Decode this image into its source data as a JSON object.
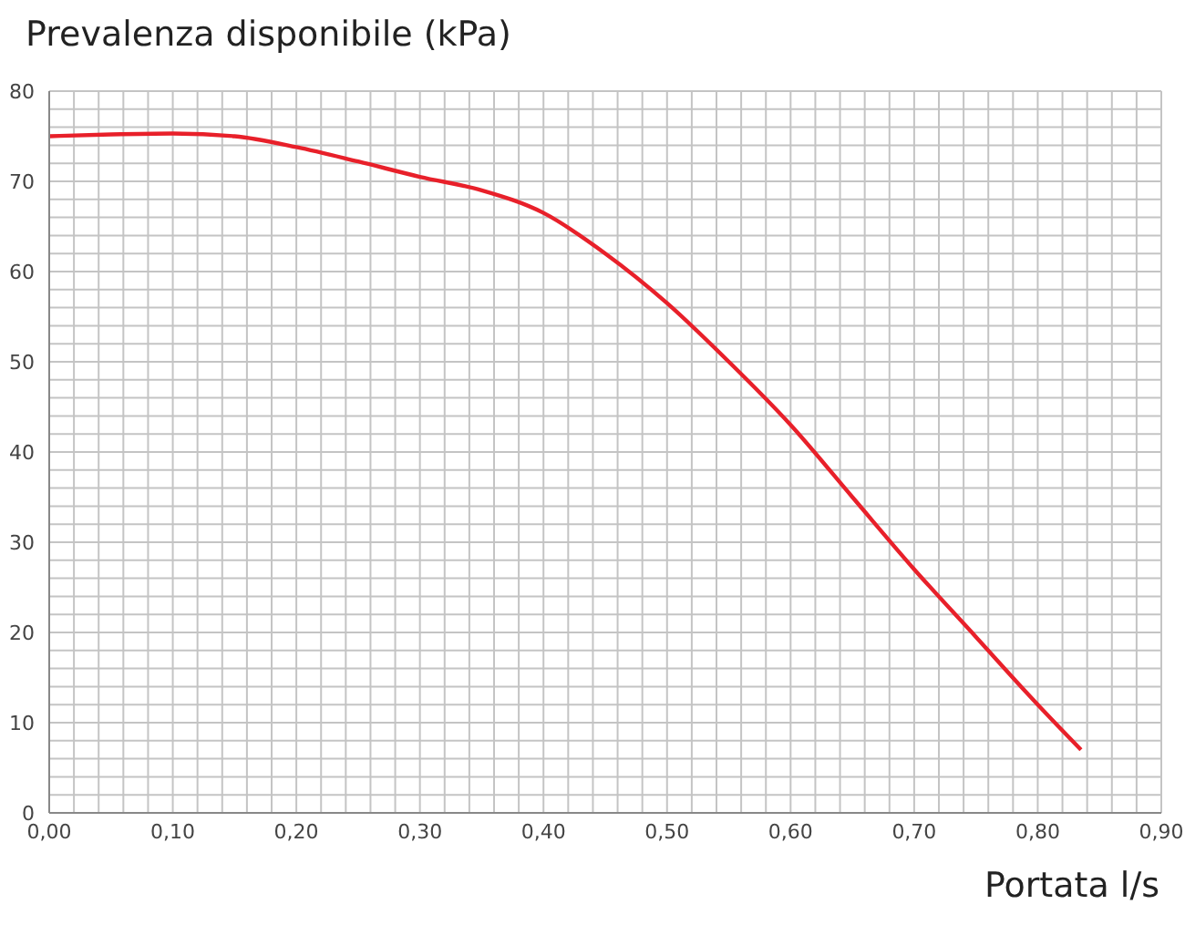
{
  "chart_data": {
    "type": "line",
    "xlabel": "Portata l/s",
    "ylabel": "Prevalenza disponibile (kPa)",
    "x": [
      0,
      0.05,
      0.1,
      0.15,
      0.2,
      0.25,
      0.3,
      0.35,
      0.4,
      0.45,
      0.5,
      0.55,
      0.6,
      0.65,
      0.7,
      0.75,
      0.8,
      0.835
    ],
    "series": [
      {
        "color": "#e8202a",
        "values": [
          75,
          75.2,
          75.3,
          75,
          73.8,
          72.2,
          70.5,
          69,
          66.5,
          62,
          56.5,
          50,
          43,
          35,
          27,
          19.5,
          12,
          7
        ]
      }
    ],
    "xlim": [
      0,
      0.9
    ],
    "xticks": [
      {
        "value": 0,
        "label": "0,00"
      },
      {
        "value": 0.02,
        "label": null
      },
      {
        "value": 0.04,
        "label": null
      },
      {
        "value": 0.06,
        "label": null
      },
      {
        "value": 0.08,
        "label": null
      },
      {
        "value": 0.1,
        "label": "0,10"
      },
      {
        "value": 0.12,
        "label": null
      },
      {
        "value": 0.14,
        "label": null
      },
      {
        "value": 0.16,
        "label": null
      },
      {
        "value": 0.18,
        "label": null
      },
      {
        "value": 0.2,
        "label": "0,20"
      },
      {
        "value": 0.22,
        "label": null
      },
      {
        "value": 0.24,
        "label": null
      },
      {
        "value": 0.26,
        "label": null
      },
      {
        "value": 0.28,
        "label": null
      },
      {
        "value": 0.3,
        "label": "0,30"
      },
      {
        "value": 0.32,
        "label": null
      },
      {
        "value": 0.34,
        "label": null
      },
      {
        "value": 0.36,
        "label": null
      },
      {
        "value": 0.38,
        "label": null
      },
      {
        "value": 0.4,
        "label": "0,40"
      },
      {
        "value": 0.42,
        "label": null
      },
      {
        "value": 0.44,
        "label": null
      },
      {
        "value": 0.46,
        "label": null
      },
      {
        "value": 0.48,
        "label": null
      },
      {
        "value": 0.5,
        "label": "0,50"
      },
      {
        "value": 0.52,
        "label": null
      },
      {
        "value": 0.54,
        "label": null
      },
      {
        "value": 0.56,
        "label": null
      },
      {
        "value": 0.58,
        "label": null
      },
      {
        "value": 0.6,
        "label": "0,60"
      },
      {
        "value": 0.62,
        "label": null
      },
      {
        "value": 0.64,
        "label": null
      },
      {
        "value": 0.66,
        "label": null
      },
      {
        "value": 0.68,
        "label": null
      },
      {
        "value": 0.7,
        "label": "0,70"
      },
      {
        "value": 0.72,
        "label": null
      },
      {
        "value": 0.74,
        "label": null
      },
      {
        "value": 0.76,
        "label": null
      },
      {
        "value": 0.78,
        "label": null
      },
      {
        "value": 0.8,
        "label": "0,80"
      },
      {
        "value": 0.82,
        "label": null
      },
      {
        "value": 0.84,
        "label": null
      },
      {
        "value": 0.86,
        "label": null
      },
      {
        "value": 0.88,
        "label": null
      },
      {
        "value": 0.9,
        "label": "0,90"
      }
    ],
    "ylim": [
      0,
      80
    ],
    "yticks": [
      0,
      {
        "value": 2,
        "label": null
      },
      {
        "value": 4,
        "label": null
      },
      {
        "value": 6,
        "label": null
      },
      {
        "value": 8,
        "label": null
      },
      10,
      {
        "value": 12,
        "label": null
      },
      {
        "value": 14,
        "label": null
      },
      {
        "value": 16,
        "label": null
      },
      {
        "value": 18,
        "label": null
      },
      20,
      {
        "value": 22,
        "label": null
      },
      {
        "value": 24,
        "label": null
      },
      {
        "value": 26,
        "label": null
      },
      {
        "value": 28,
        "label": null
      },
      30,
      {
        "value": 32,
        "label": null
      },
      {
        "value": 34,
        "label": null
      },
      {
        "value": 36,
        "label": null
      },
      {
        "value": 38,
        "label": null
      },
      40,
      {
        "value": 42,
        "label": null
      },
      {
        "value": 44,
        "label": null
      },
      {
        "value": 46,
        "label": null
      },
      {
        "value": 48,
        "label": null
      },
      50,
      {
        "value": 52,
        "label": null
      },
      {
        "value": 54,
        "label": null
      },
      {
        "value": 56,
        "label": null
      },
      {
        "value": 58,
        "label": null
      },
      60,
      {
        "value": 62,
        "label": null
      },
      {
        "value": 64,
        "label": null
      },
      {
        "value": 66,
        "label": null
      },
      {
        "value": 68,
        "label": null
      },
      70,
      {
        "value": 72,
        "label": null
      },
      {
        "value": 74,
        "label": null
      },
      {
        "value": 76,
        "label": null
      },
      {
        "value": 78,
        "label": null
      },
      80
    ],
    "grid": true,
    "marker": "none",
    "line_style": "solid"
  }
}
